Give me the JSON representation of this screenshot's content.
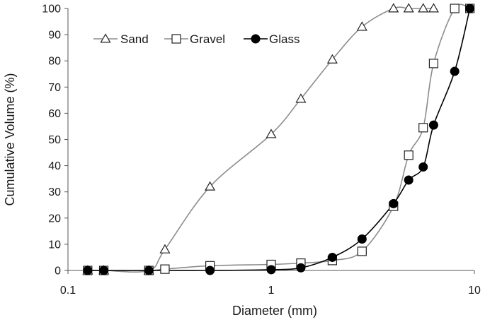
{
  "chart_data": {
    "type": "scatter",
    "title": "",
    "xlabel": "Diameter (mm)",
    "ylabel": "Cumulative Volume (%)",
    "xscale": "log",
    "xlim": [
      0.1,
      10
    ],
    "ylim": [
      0,
      100
    ],
    "x_ticks": [
      0.1,
      1,
      10
    ],
    "x_tick_labels": [
      "0.1",
      "1",
      "10"
    ],
    "y_ticks": [
      0,
      10,
      20,
      30,
      40,
      50,
      60,
      70,
      80,
      90,
      100
    ],
    "y_tick_labels": [
      "0",
      "10",
      "20",
      "30",
      "40",
      "50",
      "60",
      "70",
      "80",
      "90",
      "100"
    ],
    "grid": false,
    "legend_position": "top-left",
    "lines": "smoothed",
    "series": [
      {
        "name": "Sand",
        "marker": "triangle-open",
        "color": "#8c8c8c",
        "x": [
          0.125,
          0.15,
          0.25,
          0.3,
          0.5,
          1,
          1.4,
          2,
          2.8,
          4,
          4.75,
          5.6,
          6.3
        ],
        "y": [
          0,
          0,
          0,
          8,
          32,
          52,
          65.5,
          80.5,
          93,
          100,
          100,
          100,
          100
        ]
      },
      {
        "name": "Gravel",
        "marker": "square-open",
        "color": "#8c8c8c",
        "x": [
          0.125,
          0.15,
          0.25,
          0.3,
          0.5,
          1,
          1.4,
          2,
          2.8,
          4,
          4.75,
          5.6,
          6.3,
          8,
          9.5
        ],
        "y": [
          0,
          0,
          0,
          0.5,
          1.8,
          2.3,
          2.8,
          3.8,
          7.3,
          24.5,
          44,
          54.5,
          79,
          100,
          100
        ]
      },
      {
        "name": "Glass",
        "marker": "circle-filled",
        "color": "#000000",
        "x": [
          0.125,
          0.15,
          0.25,
          0.5,
          1,
          1.4,
          2,
          2.8,
          4,
          4.75,
          5.6,
          6.3,
          8,
          9.5
        ],
        "y": [
          0,
          0,
          0,
          0,
          0.3,
          1,
          5,
          12,
          25.5,
          34.5,
          39.5,
          55.5,
          76,
          100
        ]
      }
    ]
  }
}
